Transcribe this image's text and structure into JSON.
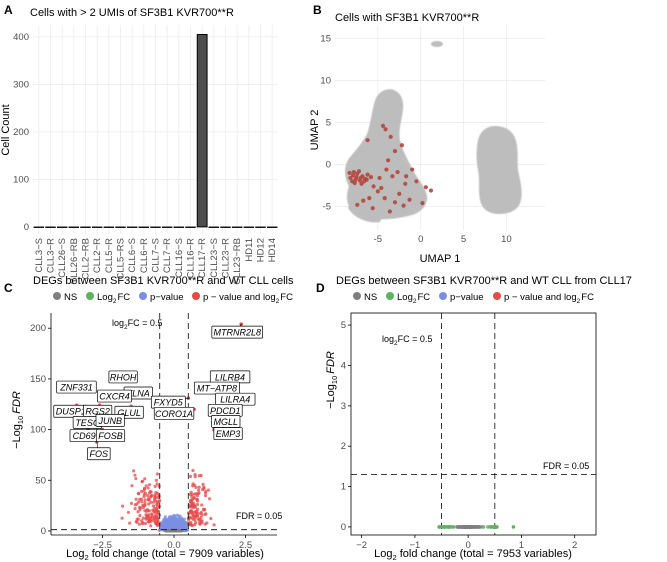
{
  "panels": {
    "A": {
      "label": "A",
      "title": "Cells with > 2 UMIs of SF3B1 KVR700**R"
    },
    "B": {
      "label": "B",
      "title": "Cells with SF3B1 KVR700**R"
    },
    "C": {
      "label": "C",
      "title": "DEGs between SF3B1 KVR700**R and WT CLL cells"
    },
    "D": {
      "label": "D",
      "title": "DEGs between SF3B1 KVR700**R and WT CLL from CLL17"
    }
  },
  "legend": {
    "items": [
      "NS",
      "Log",
      "p−value",
      "p − value and log"
    ],
    "fc_suffix": "FC",
    "subscript": "2",
    "colors": [
      "#7f7f7f",
      "#5fb25f",
      "#7a8fe0",
      "#e84a4a"
    ]
  },
  "volcano_text": {
    "ylabel_prefix": "−Log",
    "ylabel_sub": "10",
    "ylabel_var": "FDR",
    "xlabel_prefix": "Log",
    "xlabel_sub": "2",
    "fc_prefix": "log",
    "fc_sub": "2",
    "fc_rest": "FC = 0.5",
    "fdr_label": "FDR = 0.05"
  },
  "chart_data": [
    {
      "type": "bar",
      "title": "Cells with > 2 UMIs of SF3B1 KVR700**R",
      "xlabel": "",
      "ylabel": "Cell Count",
      "categories": [
        "CLL3−S",
        "CLL3−R",
        "CLL26−S",
        "CLL26−RB",
        "CLL2−RB",
        "CLL2−R",
        "CLL5−R",
        "CLL5−RS",
        "CLL6−S",
        "CLL6−R",
        "CLL7−S",
        "CLL7−R",
        "CLL16−S",
        "CLL16−R",
        "CLL17−R",
        "CLL23−S",
        "CLL23−R",
        "CLL23−RB",
        "HD11",
        "HD12",
        "HD14"
      ],
      "values": [
        0,
        0,
        0,
        0,
        0,
        0,
        0,
        0,
        0,
        0,
        0,
        0,
        0,
        0,
        405,
        0,
        0,
        0,
        0,
        0,
        0
      ],
      "ylim": [
        -15,
        425
      ],
      "yticks": [
        0,
        100,
        200,
        300,
        400
      ],
      "color": "#4d4d4d",
      "grid": true
    },
    {
      "type": "scatter",
      "title": "Cells with SF3B1 KVR700**R",
      "xlabel": "UMAP 1",
      "ylabel": "UMAP 2",
      "xlim": [
        -10,
        14.5
      ],
      "ylim": [
        -7.8,
        16.5
      ],
      "xticks": [
        -5,
        0,
        5,
        10
      ],
      "yticks": [
        -5,
        0,
        5,
        10,
        15
      ],
      "grid": true,
      "background_color": "#bdbdbd",
      "highlight_color": "#b3463c",
      "highlight_points": [
        [
          -8.2,
          -1.6
        ],
        [
          -7.9,
          -1.3
        ],
        [
          -7.6,
          -1.8
        ],
        [
          -7.4,
          -1.1
        ],
        [
          -7.1,
          -1.9
        ],
        [
          -6.8,
          -1.4
        ],
        [
          -6.5,
          -1.7
        ],
        [
          -7.7,
          -2.2
        ],
        [
          -7.2,
          -0.8
        ],
        [
          -8.0,
          -2.0
        ],
        [
          -6.9,
          -2.3
        ],
        [
          -6.2,
          -1.2
        ],
        [
          -7.5,
          -1.5
        ],
        [
          -7.0,
          -1.6
        ],
        [
          -6.6,
          -2.0
        ],
        [
          -8.3,
          -1.0
        ],
        [
          -6.3,
          -1.8
        ],
        [
          -7.8,
          -0.9
        ],
        [
          -5.8,
          -1.5
        ],
        [
          -5.5,
          -2.6
        ],
        [
          -4.6,
          -2.8
        ],
        [
          -3.3,
          -1.4
        ],
        [
          -1.8,
          -2.3
        ],
        [
          -1.3,
          -4.2
        ],
        [
          -2.5,
          -3.5
        ],
        [
          -3.6,
          -5.6
        ],
        [
          -4.2,
          -4.0
        ],
        [
          -5.0,
          -3.2
        ],
        [
          -6.0,
          -4.0
        ],
        [
          -5.6,
          -5.2
        ],
        [
          0.6,
          -2.7
        ],
        [
          -4.4,
          4.6
        ],
        [
          -4.1,
          4.2
        ],
        [
          -3.5,
          3.3
        ],
        [
          -6.2,
          2.9
        ],
        [
          -3.0,
          1.6
        ],
        [
          -2.2,
          2.3
        ],
        [
          -3.8,
          0.5
        ],
        [
          -2.7,
          -0.9
        ],
        [
          -4.0,
          -0.6
        ],
        [
          -1.0,
          -0.6
        ],
        [
          -0.5,
          -2.0
        ],
        [
          -2.0,
          -4.9
        ],
        [
          -3.0,
          -4.5
        ],
        [
          -6.7,
          -4.3
        ],
        [
          -7.4,
          -4.8
        ],
        [
          -1.7,
          -1.4
        ],
        [
          -4.8,
          -1.6
        ],
        [
          1.2,
          -3.1
        ],
        [
          0.2,
          -4.6
        ]
      ]
    },
    {
      "type": "scatter",
      "title": "DEGs between SF3B1 KVR700**R and WT CLL cells",
      "xlabel": "Log2 fold change (total = 7909 variables)",
      "ylabel": "−Log10 FDR",
      "xlim": [
        -4.3,
        3.6
      ],
      "ylim": [
        -4,
        215
      ],
      "xticks": [
        -2.5,
        0.0,
        2.5
      ],
      "xticklabels": [
        "−2.5",
        "0.0",
        "2.5"
      ],
      "yticks": [
        0,
        50,
        100,
        150,
        200
      ],
      "fc_cutoff": 0.5,
      "fdr_cutoff_y": 1.3,
      "total_variables": 7909,
      "labeled_genes": [
        {
          "gene": "MTRNR2L8",
          "x": 2.35,
          "y": 204
        },
        {
          "gene": "LILRB4",
          "x": 1.75,
          "y": 150
        },
        {
          "gene": "MT−ATP8",
          "x": 1.5,
          "y": 139
        },
        {
          "gene": "LILRA4",
          "x": 2.0,
          "y": 130
        },
        {
          "gene": "PDCD1",
          "x": 1.65,
          "y": 121
        },
        {
          "gene": "MGLL",
          "x": 1.6,
          "y": 112
        },
        {
          "gene": "EMP3",
          "x": 1.4,
          "y": 100
        },
        {
          "gene": "RHOH",
          "x": -1.5,
          "y": 148
        },
        {
          "gene": "FLNA",
          "x": -0.9,
          "y": 140
        },
        {
          "gene": "FXYD5",
          "x": 0.5,
          "y": 131
        },
        {
          "gene": "CORO1A",
          "x": 0.7,
          "y": 120
        },
        {
          "gene": "ZNF331",
          "x": -3.2,
          "y": 138
        },
        {
          "gene": "CXCR4",
          "x": -1.8,
          "y": 137
        },
        {
          "gene": "DUSP1",
          "x": -3.4,
          "y": 124
        },
        {
          "gene": "RGS2",
          "x": -2.6,
          "y": 124
        },
        {
          "gene": "GLUL",
          "x": -1.5,
          "y": 123
        },
        {
          "gene": "TESC",
          "x": -3.1,
          "y": 113
        },
        {
          "gene": "JUNB",
          "x": -2.3,
          "y": 113
        },
        {
          "gene": "CD69",
          "x": -3.0,
          "y": 100
        },
        {
          "gene": "FOSB",
          "x": -2.5,
          "y": 100
        },
        {
          "gene": "FOS",
          "x": -2.7,
          "y": 88
        }
      ]
    },
    {
      "type": "scatter",
      "title": "DEGs between SF3B1 KVR700**R and WT CLL from CLL17",
      "xlabel": "Log2 fold change (total = 7953 variables)",
      "ylabel": "−Log10 FDR",
      "xlim": [
        -2.2,
        2.4
      ],
      "ylim": [
        -0.2,
        5.3
      ],
      "xticks": [
        -2,
        -1,
        0,
        1,
        2
      ],
      "xticklabels": [
        "−2",
        "−1",
        "0",
        "1",
        "2"
      ],
      "yticks": [
        0,
        1,
        2,
        3,
        4,
        5
      ],
      "fc_cutoff": 0.5,
      "fdr_cutoff_y": 1.3,
      "total_variables": 7953,
      "labeled_genes": []
    }
  ]
}
